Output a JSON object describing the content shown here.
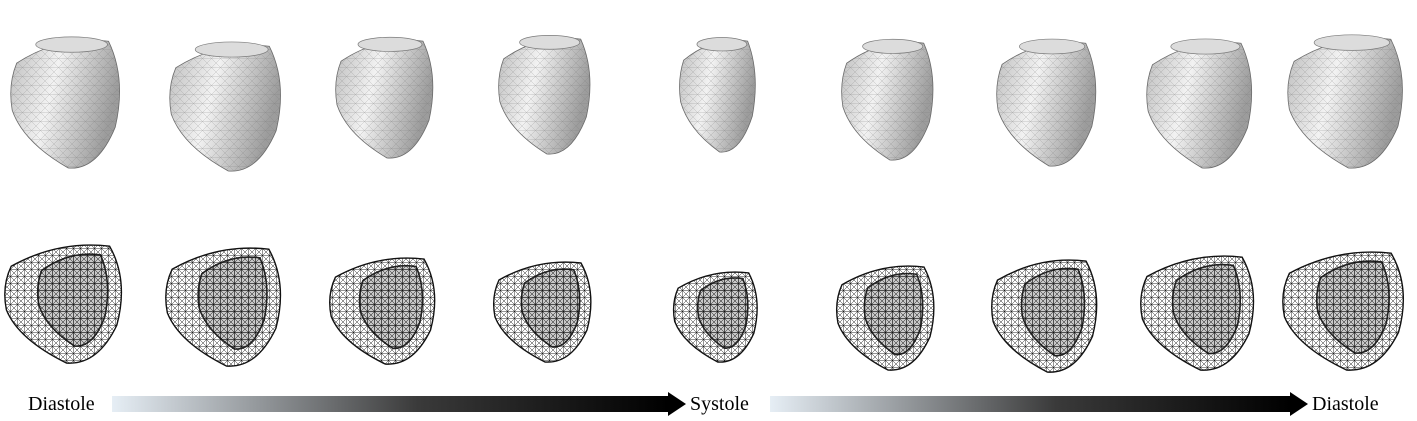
{
  "figure": {
    "frame_count": 9,
    "rows": [
      "surface-mesh",
      "wireframe-mesh"
    ],
    "phase_labels": [
      "Diastole",
      "Systole",
      "Diastole"
    ],
    "colors": {
      "surface_light": "#f4f4f4",
      "surface_dark": "#a9a9a9",
      "wire": "#111111",
      "arrow_start": "#e6eef5",
      "arrow_end": "#000000"
    }
  }
}
